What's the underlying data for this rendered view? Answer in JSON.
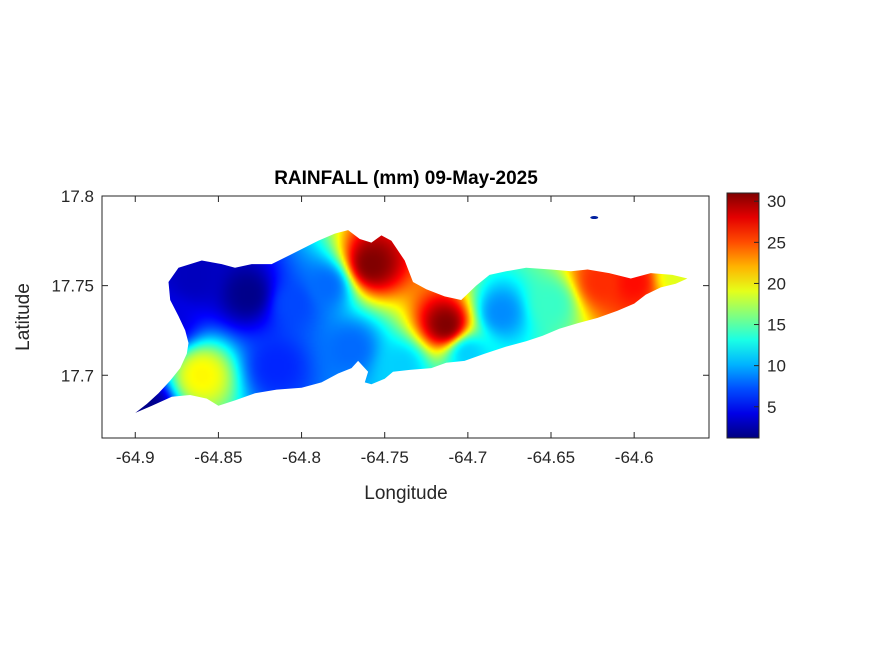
{
  "chart_data": {
    "type": "heatmap",
    "title": "RAINFALL (mm) 09-May-2025",
    "xlabel": "Longitude",
    "ylabel": "Latitude",
    "xlim": [
      -64.92,
      -64.555
    ],
    "ylim": [
      17.665,
      17.8
    ],
    "x_ticks": [
      -64.9,
      -64.85,
      -64.8,
      -64.75,
      -64.7,
      -64.65,
      -64.6
    ],
    "x_tick_labels": [
      "-64.9",
      "-64.85",
      "-64.8",
      "-64.75",
      "-64.7",
      "-64.65",
      "-64.6"
    ],
    "y_ticks": [
      17.7,
      17.75,
      17.8
    ],
    "y_tick_labels": [
      "17.7",
      "17.75",
      "17.8"
    ],
    "colorbar": {
      "colormap": "jet",
      "range": [
        1.2,
        31
      ],
      "ticks": [
        5,
        10,
        15,
        20,
        25,
        30
      ],
      "tick_labels": [
        "5",
        "10",
        "15",
        "20",
        "25",
        "30"
      ]
    },
    "grid": false,
    "island_outline": [
      [
        -64.9,
        17.679
      ],
      [
        -64.893,
        17.684
      ],
      [
        -64.886,
        17.69
      ],
      [
        -64.879,
        17.697
      ],
      [
        -64.873,
        17.704
      ],
      [
        -64.869,
        17.712
      ],
      [
        -64.868,
        17.718
      ],
      [
        -64.87,
        17.725
      ],
      [
        -64.874,
        17.733
      ],
      [
        -64.879,
        17.742
      ],
      [
        -64.88,
        17.752
      ],
      [
        -64.874,
        17.76
      ],
      [
        -64.86,
        17.764
      ],
      [
        -64.848,
        17.762
      ],
      [
        -64.84,
        17.76
      ],
      [
        -64.83,
        17.762
      ],
      [
        -64.818,
        17.762
      ],
      [
        -64.805,
        17.768
      ],
      [
        -64.79,
        17.775
      ],
      [
        -64.78,
        17.779
      ],
      [
        -64.772,
        17.781
      ],
      [
        -64.765,
        17.776
      ],
      [
        -64.758,
        17.774
      ],
      [
        -64.752,
        17.778
      ],
      [
        -64.746,
        17.775
      ],
      [
        -64.738,
        17.764
      ],
      [
        -64.733,
        17.752
      ],
      [
        -64.725,
        17.748
      ],
      [
        -64.714,
        17.744
      ],
      [
        -64.704,
        17.742
      ],
      [
        -64.695,
        17.75
      ],
      [
        -64.687,
        17.756
      ],
      [
        -64.677,
        17.758
      ],
      [
        -64.665,
        17.76
      ],
      [
        -64.65,
        17.759
      ],
      [
        -64.638,
        17.758
      ],
      [
        -64.628,
        17.759
      ],
      [
        -64.615,
        17.757
      ],
      [
        -64.602,
        17.754
      ],
      [
        -64.59,
        17.757
      ],
      [
        -64.577,
        17.756
      ],
      [
        -64.568,
        17.754
      ],
      [
        -64.575,
        17.751
      ],
      [
        -64.584,
        17.749
      ],
      [
        -64.593,
        17.745
      ],
      [
        -64.6,
        17.74
      ],
      [
        -64.61,
        17.736
      ],
      [
        -64.622,
        17.732
      ],
      [
        -64.634,
        17.729
      ],
      [
        -64.645,
        17.726
      ],
      [
        -64.655,
        17.722
      ],
      [
        -64.665,
        17.719
      ],
      [
        -64.677,
        17.716
      ],
      [
        -64.69,
        17.712
      ],
      [
        -64.702,
        17.708
      ],
      [
        -64.713,
        17.707
      ],
      [
        -64.722,
        17.704
      ],
      [
        -64.735,
        17.703
      ],
      [
        -64.745,
        17.702
      ],
      [
        -64.75,
        17.698
      ],
      [
        -64.758,
        17.695
      ],
      [
        -64.762,
        17.696
      ],
      [
        -64.76,
        17.702
      ],
      [
        -64.766,
        17.708
      ],
      [
        -64.77,
        17.704
      ],
      [
        -64.778,
        17.701
      ],
      [
        -64.788,
        17.696
      ],
      [
        -64.8,
        17.693
      ],
      [
        -64.815,
        17.692
      ],
      [
        -64.828,
        17.69
      ],
      [
        -64.84,
        17.686
      ],
      [
        -64.85,
        17.683
      ],
      [
        -64.857,
        17.687
      ],
      [
        -64.867,
        17.689
      ],
      [
        -64.878,
        17.688
      ],
      [
        -64.89,
        17.683
      ]
    ],
    "small_islet": [
      -64.624,
      17.788
    ],
    "rainfall_centers": [
      {
        "lon": -64.758,
        "lat": 17.762,
        "mm": 31
      },
      {
        "lon": -64.713,
        "lat": 17.728,
        "mm": 31
      },
      {
        "lon": -64.86,
        "lat": 17.7,
        "mm": 20
      },
      {
        "lon": -64.62,
        "lat": 17.752,
        "mm": 26
      },
      {
        "lon": -64.6,
        "lat": 17.752,
        "mm": 27
      },
      {
        "lon": -64.575,
        "lat": 17.755,
        "mm": 19
      },
      {
        "lon": -64.65,
        "lat": 17.74,
        "mm": 14
      },
      {
        "lon": -64.68,
        "lat": 17.735,
        "mm": 9
      },
      {
        "lon": -64.785,
        "lat": 17.75,
        "mm": 8
      },
      {
        "lon": -64.805,
        "lat": 17.74,
        "mm": 7
      },
      {
        "lon": -64.832,
        "lat": 17.745,
        "mm": 1.5
      },
      {
        "lon": -64.865,
        "lat": 17.755,
        "mm": 3
      },
      {
        "lon": -64.88,
        "lat": 17.73,
        "mm": 4
      },
      {
        "lon": -64.895,
        "lat": 17.682,
        "mm": 1.5
      },
      {
        "lon": -64.815,
        "lat": 17.705,
        "mm": 6
      },
      {
        "lon": -64.77,
        "lat": 17.715,
        "mm": 8
      },
      {
        "lon": -64.74,
        "lat": 17.705,
        "mm": 11
      },
      {
        "lon": -64.7,
        "lat": 17.712,
        "mm": 11
      }
    ]
  }
}
